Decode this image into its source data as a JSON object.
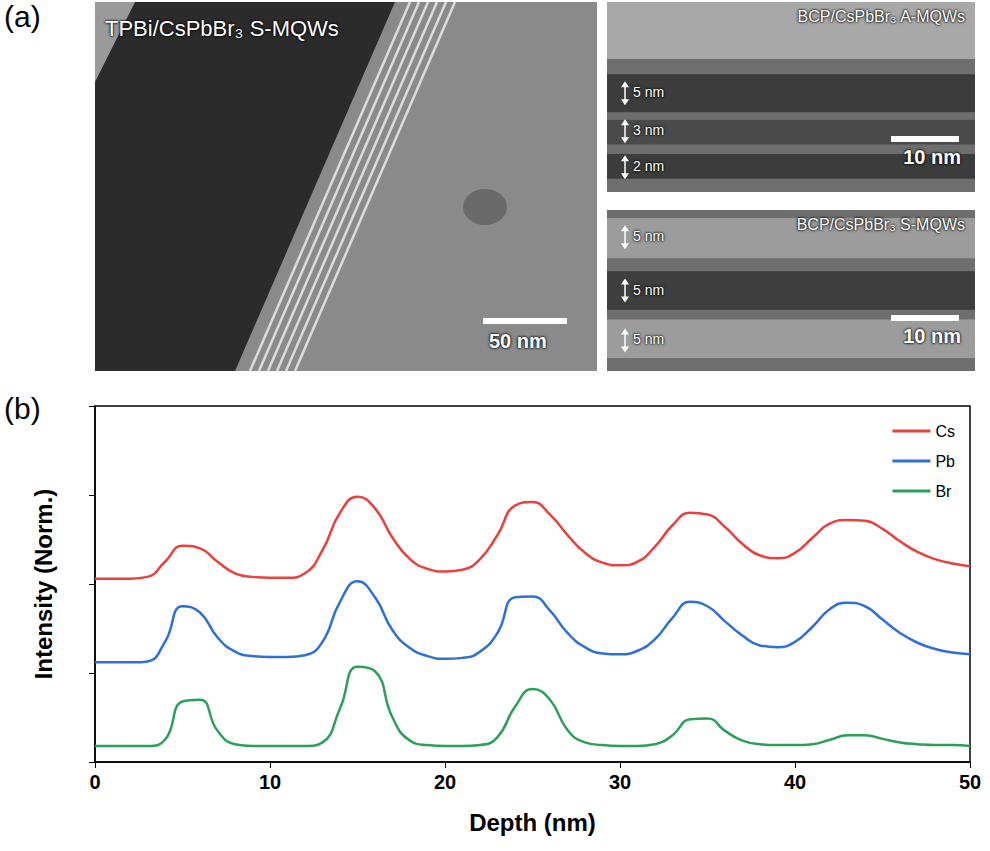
{
  "figure": {
    "panel_letters": [
      "(a)",
      "(b)"
    ],
    "images": [
      {
        "title": "TPBi/CsPbBr₃ S-MQWs",
        "scale_bar": "50 nm"
      },
      {
        "title": "BCP/CsPbBr₃ A-MQWs",
        "scale_bar": "10 nm",
        "thicknesses": [
          "5 nm",
          "3 nm",
          "2 nm"
        ]
      },
      {
        "title": "BCP/CsPbBr₃ S-MQWs",
        "scale_bar": "10 nm",
        "thicknesses": [
          "5 nm",
          "5 nm",
          "5 nm"
        ]
      }
    ]
  },
  "chart_data": {
    "type": "line",
    "x_label": "Depth (nm)",
    "y_label": "Intensity (Norm.)",
    "x": [
      0,
      1,
      2,
      3,
      4,
      5,
      6,
      7,
      8,
      9,
      10,
      11,
      12,
      13,
      14,
      15,
      16,
      17,
      18,
      19,
      20,
      21,
      22,
      23,
      24,
      25,
      26,
      27,
      28,
      29,
      30,
      31,
      32,
      33,
      34,
      35,
      36,
      37,
      38,
      39,
      40,
      41,
      42,
      43,
      44,
      45,
      46,
      47,
      48,
      49,
      50
    ],
    "series": [
      {
        "name": "Cs",
        "color": "#e8413e",
        "values": [
          2.06,
          2.06,
          2.06,
          2.08,
          2.25,
          2.43,
          2.4,
          2.25,
          2.12,
          2.08,
          2.07,
          2.07,
          2.12,
          2.38,
          2.8,
          2.98,
          2.85,
          2.52,
          2.28,
          2.17,
          2.14,
          2.16,
          2.28,
          2.55,
          2.88,
          2.92,
          2.78,
          2.55,
          2.35,
          2.24,
          2.21,
          2.25,
          2.42,
          2.66,
          2.8,
          2.78,
          2.64,
          2.45,
          2.32,
          2.29,
          2.35,
          2.52,
          2.68,
          2.72,
          2.71,
          2.62,
          2.48,
          2.36,
          2.28,
          2.23,
          2.2
        ]
      },
      {
        "name": "Pb",
        "color": "#2e6fd8",
        "values": [
          1.12,
          1.12,
          1.12,
          1.13,
          1.35,
          1.75,
          1.68,
          1.4,
          1.24,
          1.19,
          1.18,
          1.18,
          1.2,
          1.35,
          1.8,
          2.03,
          1.85,
          1.48,
          1.28,
          1.19,
          1.16,
          1.17,
          1.24,
          1.45,
          1.85,
          1.86,
          1.7,
          1.45,
          1.29,
          1.22,
          1.21,
          1.25,
          1.38,
          1.62,
          1.8,
          1.75,
          1.58,
          1.42,
          1.31,
          1.29,
          1.35,
          1.52,
          1.72,
          1.79,
          1.75,
          1.6,
          1.45,
          1.34,
          1.27,
          1.23,
          1.21
        ]
      },
      {
        "name": "Br",
        "color": "#2ca05a",
        "values": [
          0.18,
          0.18,
          0.18,
          0.18,
          0.25,
          0.68,
          0.7,
          0.35,
          0.2,
          0.18,
          0.18,
          0.18,
          0.18,
          0.22,
          0.6,
          1.07,
          1.02,
          0.5,
          0.24,
          0.19,
          0.18,
          0.18,
          0.19,
          0.28,
          0.62,
          0.82,
          0.7,
          0.36,
          0.22,
          0.19,
          0.18,
          0.18,
          0.2,
          0.3,
          0.48,
          0.49,
          0.35,
          0.24,
          0.2,
          0.19,
          0.19,
          0.2,
          0.25,
          0.3,
          0.3,
          0.26,
          0.22,
          0.2,
          0.19,
          0.19,
          0.18
        ]
      }
    ],
    "xlim": [
      0,
      50
    ],
    "xticks": [
      0,
      10,
      20,
      30,
      40,
      50
    ],
    "ylim": [
      0,
      4
    ],
    "yticks": [
      0,
      1,
      2,
      3,
      4
    ],
    "tick_labels": "x",
    "grid": false,
    "legend": "top-right"
  }
}
